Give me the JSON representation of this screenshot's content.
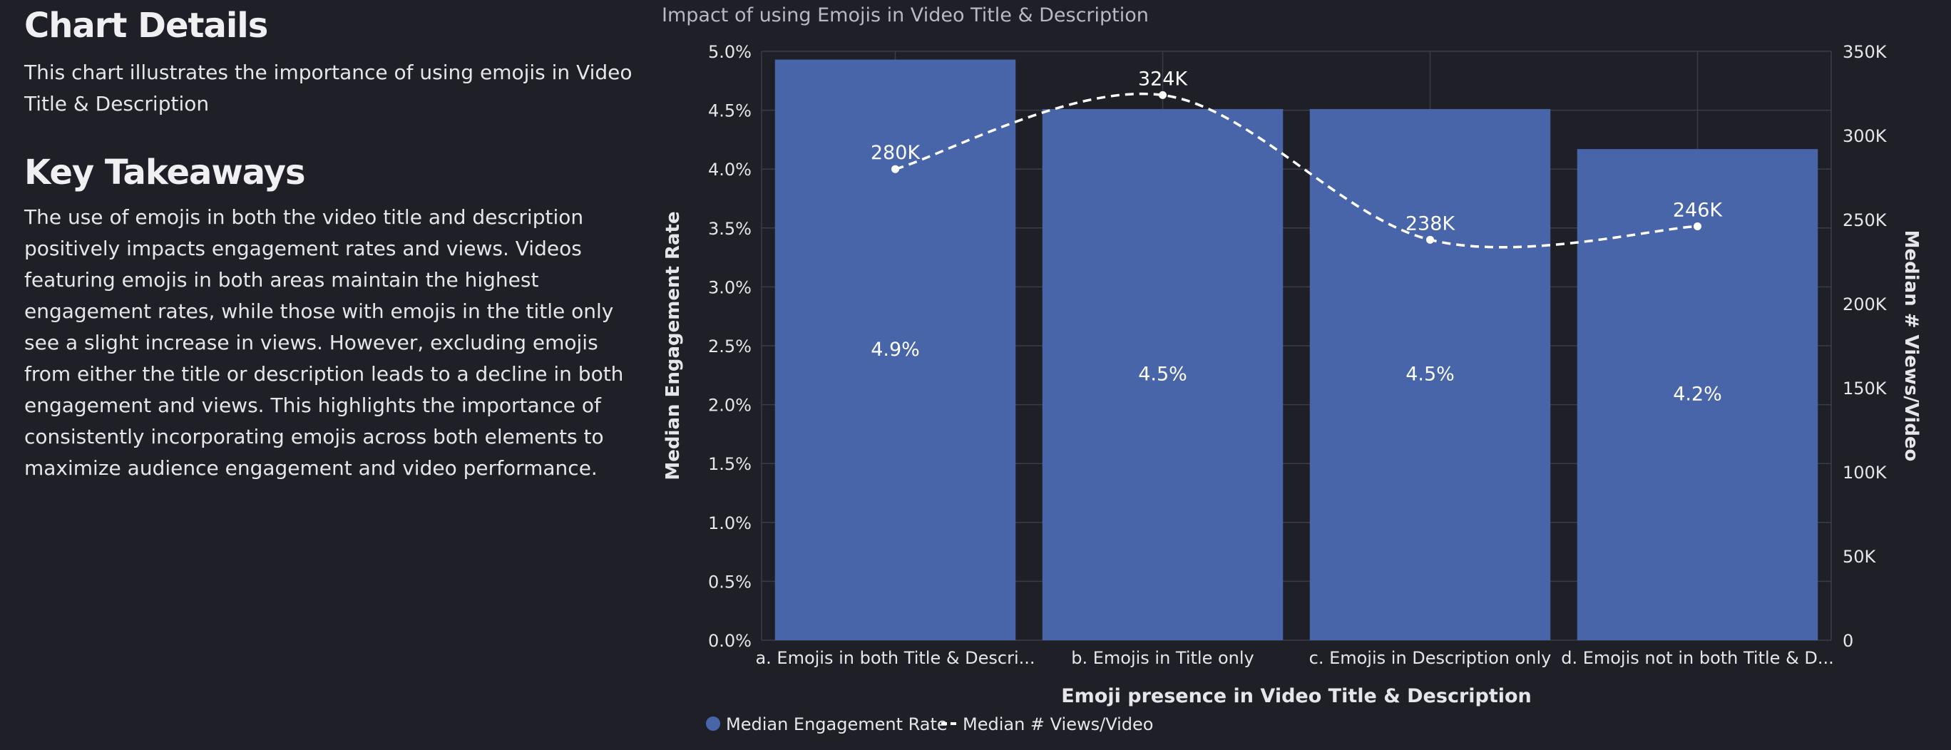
{
  "left": {
    "heading": "Chart Details",
    "description": "This chart illustrates the importance of using emojis in Video Title & Description",
    "takeaways_heading": "Key Takeaways",
    "takeaways_body": "The use of emojis in both the video title and description positively impacts engagement rates and views. Videos featuring emojis in both areas maintain the highest engagement rates, while those with emojis in the title only see a slight increase in views. However, excluding emojis from either the title or description leads to a decline in both engagement and views. This highlights the importance of consistently incorporating emojis across both elements to maximize audience engagement and video performance."
  },
  "colors": {
    "background": "#1e1f27",
    "bar": "#4865aa",
    "line": "#ffffff",
    "grid": "#3a3c48",
    "axis_text": "#e6e6ea",
    "title_text": "#b8b9c2"
  },
  "chart_data": {
    "type": "bar",
    "title": "Impact of using Emojis in Video Title & Description",
    "xlabel": "Emoji presence in Video Title & Description",
    "ylabel": "Median Engagement Rate",
    "y2label": "Median # Views/Video",
    "categories": [
      "a.  Emojis in both Title & Descri...",
      "b.  Emojis in Title only",
      "c.  Emojis in Description only",
      "d.  Emojis not in both Title & D..."
    ],
    "ylim": [
      0,
      5.0
    ],
    "y_ticks": [
      "0.0%",
      "0.5%",
      "1.0%",
      "1.5%",
      "2.0%",
      "2.5%",
      "3.0%",
      "3.5%",
      "4.0%",
      "4.5%",
      "5.0%"
    ],
    "y2lim": [
      0,
      350000
    ],
    "y2_ticks": [
      "0",
      "50K",
      "100K",
      "150K",
      "200K",
      "250K",
      "300K",
      "350K"
    ],
    "grid": true,
    "legend_position": "bottom-left",
    "series": [
      {
        "name": "Median Engagement Rate",
        "type": "bar",
        "axis": "left",
        "values": [
          4.93,
          4.51,
          4.51,
          4.17
        ],
        "labels": [
          "4.9%",
          "4.5%",
          "4.5%",
          "4.2%"
        ]
      },
      {
        "name": "Median # Views/Video",
        "type": "line",
        "style": "dashed",
        "axis": "right",
        "values": [
          280000,
          324000,
          238000,
          246000
        ],
        "labels": [
          "280K",
          "324K",
          "238K",
          "246K"
        ]
      }
    ]
  }
}
